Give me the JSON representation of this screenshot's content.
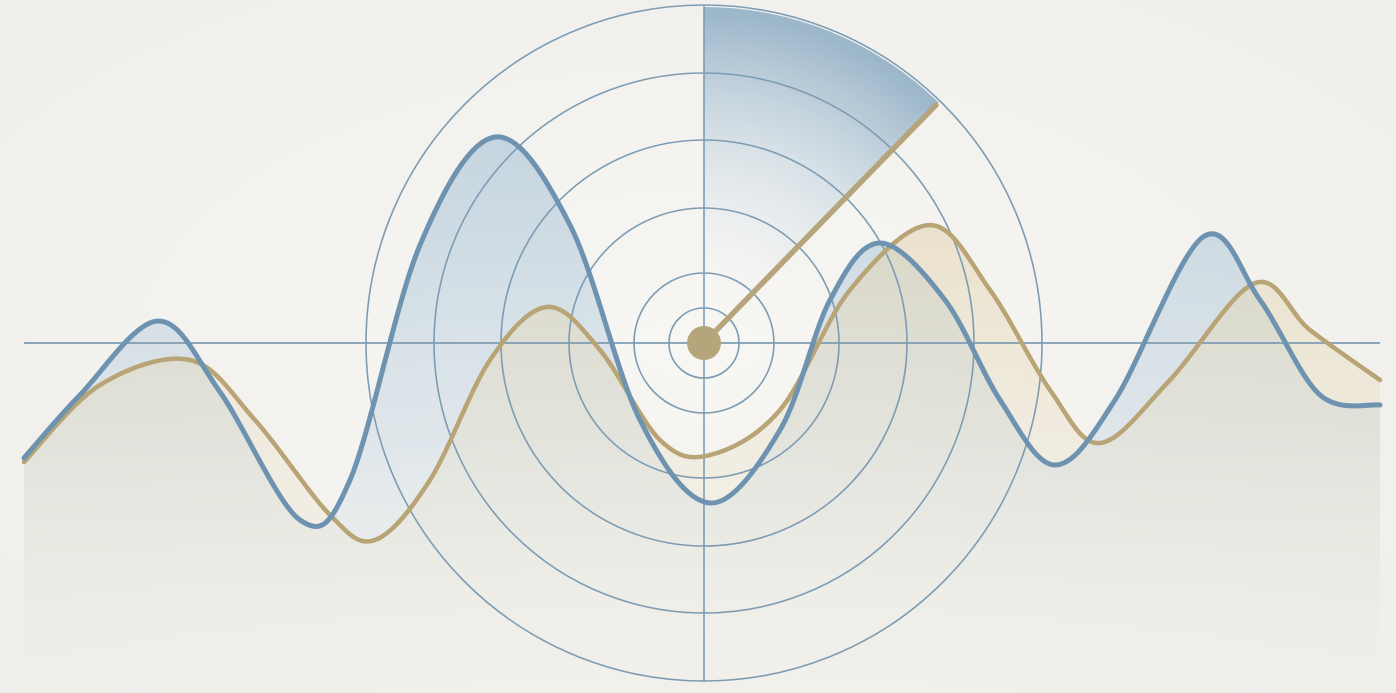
{
  "illustration": {
    "subject": "radar-sweep-over-waves",
    "colors": {
      "background": "#f4f3ef",
      "radar_line": "#7d9cb3",
      "wave_blue": "#6e93b1",
      "wave_gold": "#b9a476",
      "hub": "#b6a57a",
      "sweep_fill": "#8fb1c9",
      "area_fill": "#c7d7e3"
    }
  }
}
